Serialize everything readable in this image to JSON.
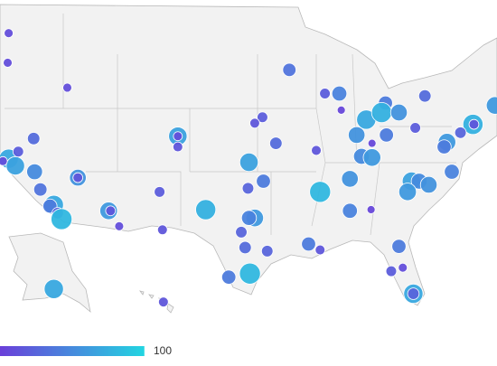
{
  "chart_data": {
    "type": "bubble_map",
    "lon": [
      -122.1,
      -122.2,
      -116.0,
      -92.9,
      -89.2,
      -87.7,
      -87.5,
      -78.8,
      -95.7,
      -96.5,
      -94.3,
      -90.1,
      -82.9,
      -84.9,
      -83.3,
      -81.5,
      -79.8,
      -73.8,
      -73.7,
      -71.5,
      -85.9,
      -84.3,
      -82.8,
      -85.4,
      -84.3,
      -76.5,
      -76.8,
      -75.1,
      -104.5,
      -104.5,
      -104.5,
      -119.5,
      -122.1,
      -121.4,
      -121.1,
      -122.7,
      -119.4,
      -114.9,
      -114.9,
      -97.1,
      -118.8,
      -117.4,
      -117.8,
      -117.0,
      -116.6,
      -111.7,
      -111.5,
      -110.6,
      -106.4,
      -106.1,
      -101.6,
      -97.2,
      -95.6,
      -96.5,
      -97.1,
      -89.7,
      -86.6,
      -86.6,
      -84.4,
      -76.0,
      -80.2,
      -79.4,
      -78.4,
      -80.6,
      -97.5,
      -97.9,
      -95.2,
      -90.9,
      -89.7,
      -81.5,
      -97.0,
      -99.2,
      -82.3,
      -81.1,
      -80.0,
      -80.0,
      -117.4,
      -106.0
    ],
    "lat": [
      47.6,
      45.1,
      43.0,
      44.5,
      42.5,
      42.5,
      41.1,
      42.3,
      40.5,
      40.0,
      38.3,
      37.7,
      41.7,
      40.3,
      40.9,
      40.9,
      39.6,
      39.9,
      39.9,
      41.5,
      39.0,
      38.3,
      39.0,
      37.2,
      37.1,
      38.4,
      38.0,
      39.2,
      38.9,
      38.9,
      38.0,
      38.7,
      37.0,
      36.4,
      37.6,
      36.8,
      35.9,
      35.4,
      35.4,
      36.7,
      34.4,
      33.1,
      33.0,
      32.4,
      31.9,
      32.6,
      32.6,
      31.3,
      34.2,
      31.0,
      32.7,
      34.5,
      35.1,
      32.0,
      32.0,
      34.2,
      35.3,
      32.6,
      32.7,
      35.9,
      35.1,
      35.1,
      34.8,
      34.2,
      29.5,
      30.8,
      29.2,
      29.8,
      29.3,
      29.6,
      27.3,
      27.0,
      27.5,
      27.8,
      25.6,
      25.6,
      26.0,
      24.9
    ],
    "values": [
      10,
      10,
      10,
      35,
      20,
      45,
      5,
      30,
      20,
      15,
      30,
      15,
      40,
      70,
      75,
      55,
      20,
      75,
      15,
      60,
      55,
      5,
      40,
      50,
      60,
      60,
      40,
      25,
      65,
      10,
      15,
      30,
      70,
      65,
      20,
      10,
      50,
      55,
      15,
      65,
      35,
      70,
      40,
      25,
      80,
      60,
      15,
      10,
      20,
      15,
      75,
      25,
      40,
      60,
      45,
      80,
      55,
      45,
      5,
      45,
      65,
      50,
      55,
      60,
      30,
      25,
      25,
      40,
      15,
      40,
      80,
      40,
      20,
      10,
      70,
      25,
      70,
      15
    ],
    "colorscale": [
      "#6a3fd9",
      "#22d5e1"
    ],
    "clim": [
      0,
      100
    ],
    "cticks": [
      100
    ]
  }
}
